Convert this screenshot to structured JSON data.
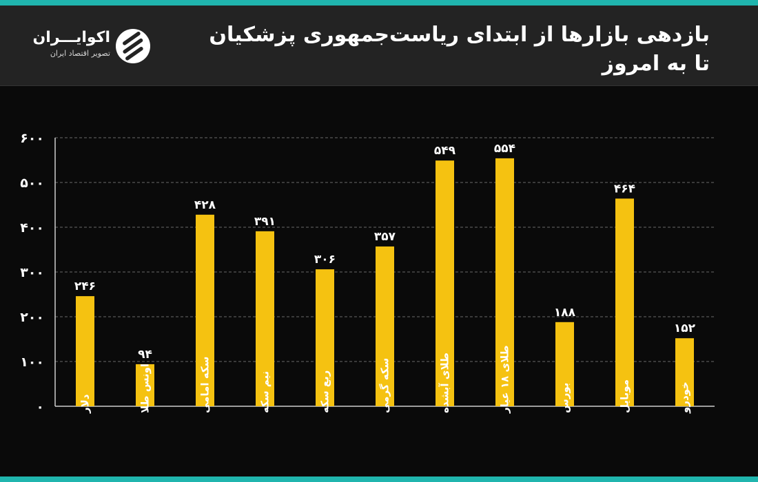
{
  "header": {
    "title": "بازدهی بازارها از ابتدای ریاست‌جمهوری پزشکیان\nتا  به امروز"
  },
  "logo": {
    "name": "اکوایـــران",
    "tagline": "تصویر اقتصاد ایران"
  },
  "colors": {
    "bar": "#f5c211",
    "background": "#0a0a0a",
    "header": "#232323",
    "accent": "#20b5ae",
    "text": "#ffffff",
    "grid": "#6a6a6a"
  },
  "chart_data": {
    "type": "bar",
    "title": "بازدهی بازارها از ابتدای ریاست‌جمهوری پزشکیان تا  به امروز",
    "xlabel": "",
    "ylabel": "",
    "ylim": [
      0,
      600
    ],
    "grid": true,
    "legend": "none",
    "yticks": [
      0,
      100,
      200,
      300,
      400,
      500,
      600
    ],
    "ytick_labels": [
      "۰",
      "۱۰۰",
      "۲۰۰",
      "۳۰۰",
      "۴۰۰",
      "۵۰۰",
      "۶۰۰"
    ],
    "categories": [
      "دلار",
      "اونس طلا",
      "سکه امامی",
      "نیم سکه",
      "ربع سکه",
      "سکه گرمی",
      "طلای آبشده",
      "طلای ۱۸ عیار",
      "بورس",
      "موبایل",
      "خودرو"
    ],
    "values": [
      246,
      94,
      428,
      391,
      306,
      357,
      549,
      554,
      188,
      464,
      152
    ],
    "value_labels": [
      "۲۴۶",
      "۹۴",
      "۴۲۸",
      "۳۹۱",
      "۳۰۶",
      "۳۵۷",
      "۵۴۹",
      "۵۵۴",
      "۱۸۸",
      "۴۶۴",
      "۱۵۲"
    ]
  }
}
